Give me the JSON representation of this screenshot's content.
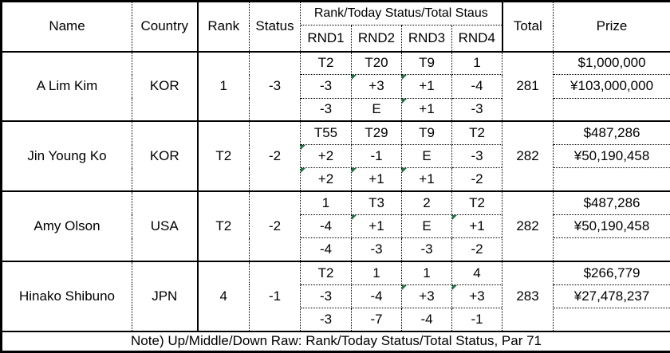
{
  "table": {
    "headers": {
      "name": "Name",
      "country": "Country",
      "rank": "Rank",
      "status": "Status",
      "rounds_group": "Rank/Today Status/Total Staus",
      "rounds": [
        "RND1",
        "RND2",
        "RND3",
        "RND4"
      ],
      "total": "Total",
      "prize": "Prize"
    },
    "players": [
      {
        "name": "A Lim Kim",
        "country": "KOR",
        "rank": "1",
        "status": "-3",
        "round_rank": [
          "T2",
          "T20",
          "T9",
          "1"
        ],
        "round_today": [
          "-3",
          "+3",
          "+1",
          "-4"
        ],
        "round_total_status": [
          "-3",
          "E",
          "+1",
          "-3"
        ],
        "total": "281",
        "prize_usd": "$1,000,000",
        "prize_jpy": "¥103,000,000"
      },
      {
        "name": "Jin Young Ko",
        "country": "KOR",
        "rank": "T2",
        "status": "-2",
        "round_rank": [
          "T55",
          "T29",
          "T9",
          "T2"
        ],
        "round_today": [
          "+2",
          "-1",
          "E",
          "-3"
        ],
        "round_total_status": [
          "+2",
          "+1",
          "+1",
          "-2"
        ],
        "total": "282",
        "prize_usd": "$487,286",
        "prize_jpy": "¥50,190,458"
      },
      {
        "name": "Amy Olson",
        "country": "USA",
        "rank": "T2",
        "status": "-2",
        "round_rank": [
          "1",
          "T3",
          "2",
          "T2"
        ],
        "round_today": [
          "-4",
          "+1",
          "E",
          "+1"
        ],
        "round_total_status": [
          "-4",
          "-3",
          "-3",
          "-2"
        ],
        "total": "282",
        "prize_usd": "$487,286",
        "prize_jpy": "¥50,190,458"
      },
      {
        "name": "Hinako Shibuno",
        "country": "JPN",
        "rank": "4",
        "status": "-1",
        "round_rank": [
          "T2",
          "1",
          "1",
          "4"
        ],
        "round_today": [
          "-3",
          "-4",
          "+3",
          "+3"
        ],
        "round_total_status": [
          "-3",
          "-7",
          "-4",
          "-1"
        ],
        "total": "283",
        "prize_usd": "$266,779",
        "prize_jpy": "¥27,478,237"
      }
    ],
    "note": "Note) Up/Middle/Down Raw: Rank/Today Status/Total Status, Par 71"
  },
  "colors": {
    "border": "#000000",
    "flag_triangle": "#217346",
    "text": "#000000",
    "background": "#ffffff"
  }
}
